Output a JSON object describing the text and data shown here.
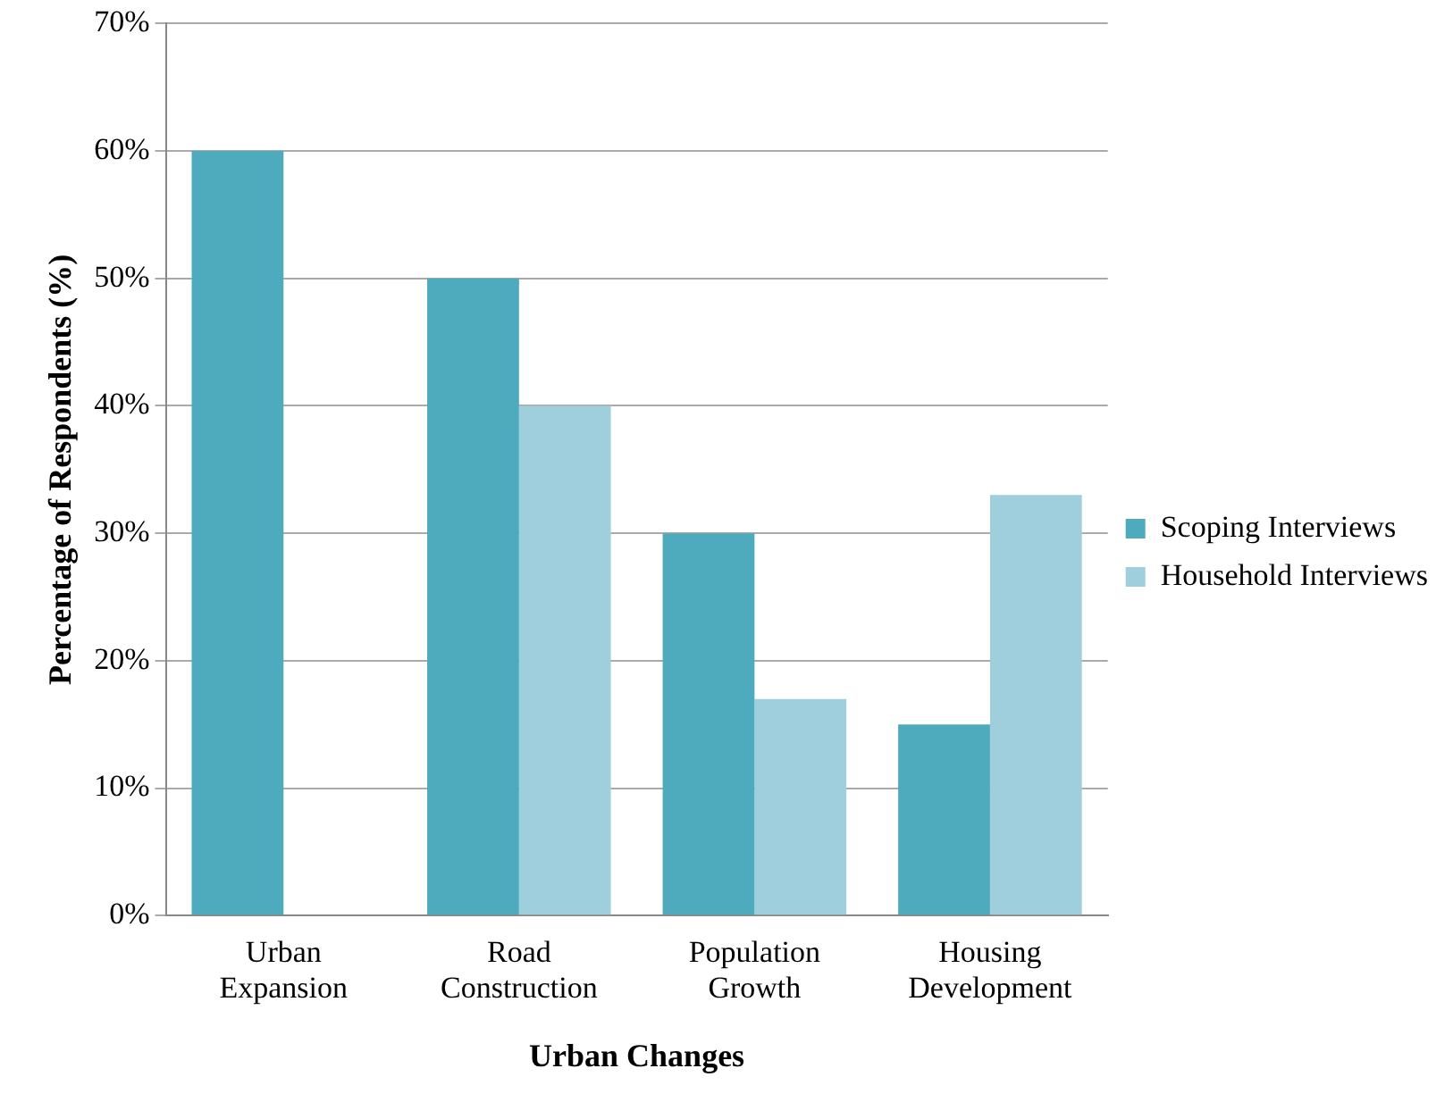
{
  "chart_data": {
    "type": "bar",
    "xlabel": "Urban Changes",
    "ylabel": "Percentage of Respondents (%)",
    "categories": [
      "Urban Expansion",
      "Road Construction",
      "Population Growth",
      "Housing Development"
    ],
    "series": [
      {
        "name": "Scoping Interviews",
        "color": "#4eaabd",
        "values": [
          60,
          50,
          30,
          15
        ]
      },
      {
        "name": "Household Interviews",
        "color": "#9fcfdc",
        "values": [
          null,
          40,
          17,
          33
        ]
      }
    ],
    "ylim": [
      0,
      70
    ],
    "yticks": [
      {
        "value": 0,
        "label": "0%"
      },
      {
        "value": 10,
        "label": "10%"
      },
      {
        "value": 20,
        "label": "20%"
      },
      {
        "value": 30,
        "label": "30%"
      },
      {
        "value": 40,
        "label": "40%"
      },
      {
        "value": 50,
        "label": "50%"
      },
      {
        "value": 60,
        "label": "60%"
      },
      {
        "value": 70,
        "label": "70%"
      }
    ],
    "grid": "y",
    "legend": "right"
  }
}
